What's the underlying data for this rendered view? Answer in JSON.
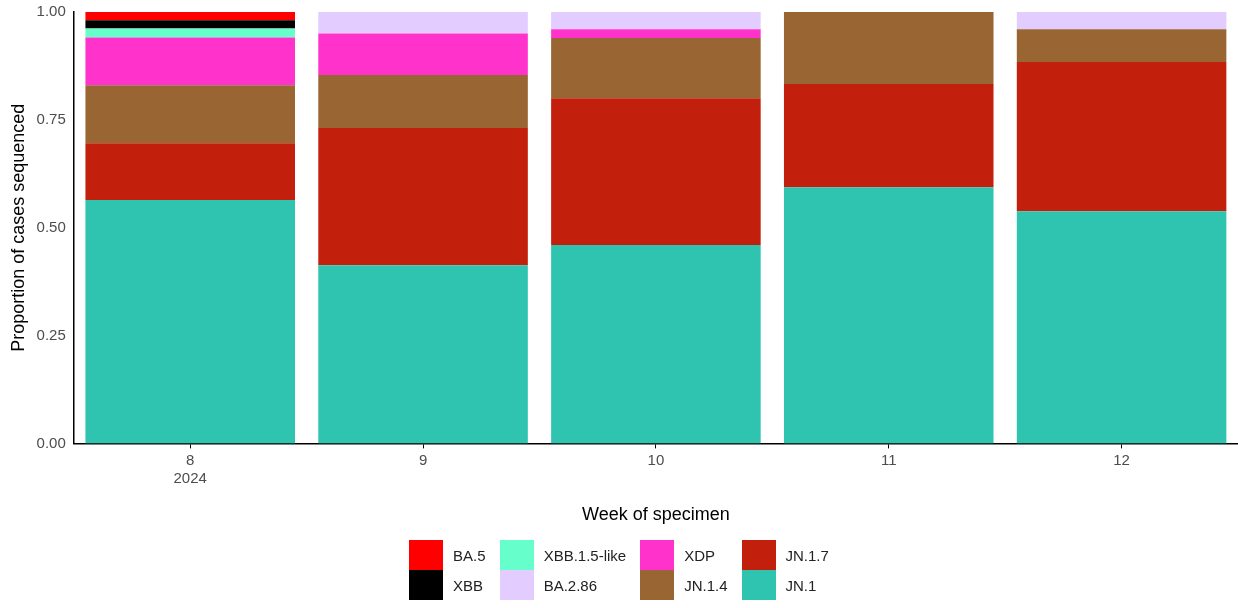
{
  "chart_data": {
    "type": "bar",
    "stacked": true,
    "xlabel": "Week of specimen",
    "ylabel": "Proportion of cases sequenced",
    "categories": [
      "8\n2024",
      "9",
      "10",
      "11",
      "12"
    ],
    "ylim": [
      0,
      1
    ],
    "yticks": [
      {
        "value": 0,
        "label": "0.00"
      },
      {
        "value": 0.25,
        "label": "0.25"
      },
      {
        "value": 0.5,
        "label": "0.50"
      },
      {
        "value": 0.75,
        "label": "0.75"
      },
      {
        "value": 1,
        "label": "1.00"
      }
    ],
    "grid": false,
    "legend": "bottom",
    "series": [
      {
        "name": "JN.1",
        "color": "#2ec4b0",
        "values": [
          0.564,
          0.413,
          0.46,
          0.594,
          0.538
        ]
      },
      {
        "name": "JN.1.7",
        "color": "#c31f0d",
        "values": [
          0.132,
          0.318,
          0.34,
          0.239,
          0.346
        ]
      },
      {
        "name": "JN.1.4",
        "color": "#996633",
        "values": [
          0.134,
          0.123,
          0.14,
          0.167,
          0.076
        ]
      },
      {
        "name": "XDP",
        "color": "#ff33cc",
        "values": [
          0.111,
          0.096,
          0.02,
          null,
          null
        ]
      },
      {
        "name": "BA.2.86",
        "color": "#e3ccff",
        "values": [
          null,
          0.05,
          0.04,
          null,
          0.04
        ]
      },
      {
        "name": "XBB.1.5-like",
        "color": "#66ffcc",
        "values": [
          0.021,
          null,
          null,
          null,
          null
        ]
      },
      {
        "name": "XBB",
        "color": "#000000",
        "values": [
          0.019,
          null,
          null,
          null,
          null
        ]
      },
      {
        "name": "BA.5",
        "color": "#ff0000",
        "values": [
          0.019,
          null,
          null,
          null,
          null
        ]
      }
    ]
  }
}
